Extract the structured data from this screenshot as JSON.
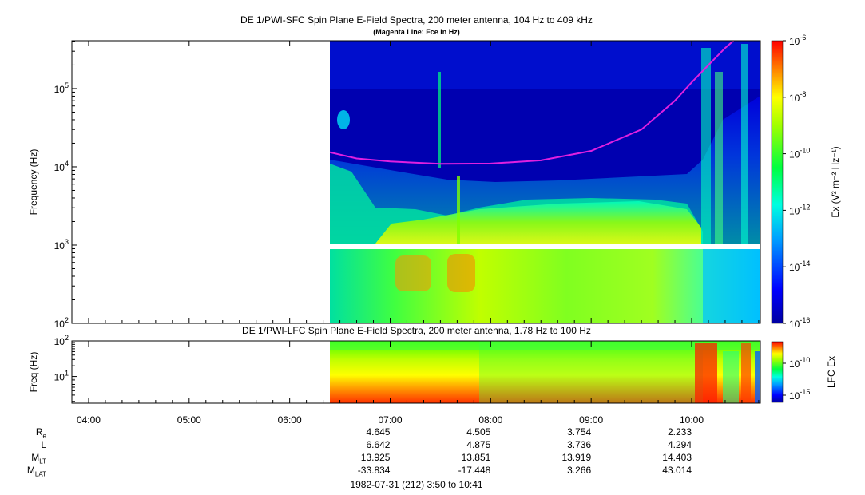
{
  "colors": {
    "bg_spectro": "#0000b0",
    "fce_line": "#e020e0",
    "gap": "#ffffff"
  },
  "chart_data": [
    {
      "type": "heatmap",
      "name": "sfc",
      "title": "DE 1/PWI-SFC  Spin Plane E-Field Spectra, 200 meter antenna, 104 Hz to 409 kHz",
      "subtitle": "(Magenta Line: Fce in Hz)",
      "ylabel": "Frequency (Hz)",
      "yscale": "log",
      "ylim": [
        100,
        409000
      ],
      "yticks": [
        {
          "value": 100,
          "base": "10",
          "exp": "2"
        },
        {
          "value": 1000,
          "base": "10",
          "exp": "3"
        },
        {
          "value": 10000,
          "base": "10",
          "exp": "4"
        },
        {
          "value": 100000,
          "base": "10",
          "exp": "5"
        }
      ],
      "xlim": [
        "03:50",
        "10:41"
      ],
      "data_start": "06:23",
      "colorbar": {
        "label": "Ex (V² m⁻² Hz⁻¹)",
        "scale": "log",
        "range": [
          1e-16,
          1e-06
        ],
        "ticks": [
          {
            "base": "10",
            "exp": "-6"
          },
          {
            "base": "10",
            "exp": "-8"
          },
          {
            "base": "10",
            "exp": "-10"
          },
          {
            "base": "10",
            "exp": "-12"
          },
          {
            "base": "10",
            "exp": "-14"
          },
          {
            "base": "10",
            "exp": "-16"
          }
        ]
      },
      "series": [
        {
          "name": "Fce",
          "x": [
            "06:23",
            "06:40",
            "07:00",
            "07:30",
            "08:00",
            "08:30",
            "09:00",
            "09:30",
            "09:50",
            "10:00",
            "10:10",
            "10:20",
            "10:25"
          ],
          "y": [
            15500,
            12800,
            11700,
            10900,
            11000,
            12100,
            16000,
            30000,
            70000,
            120000,
            200000,
            330000,
            409000
          ]
        }
      ]
    },
    {
      "type": "heatmap",
      "name": "lfc",
      "title": "DE 1/PWI-LFC  Spin Plane E-Field Spectra, 200 meter antenna, 1.78 Hz to 100 Hz",
      "ylabel": "Freq (Hz)",
      "yscale": "log",
      "ylim": [
        1.78,
        100
      ],
      "yticks": [
        {
          "value": 10,
          "base": "10",
          "exp": "1"
        },
        {
          "value": 100,
          "base": "10",
          "exp": "2"
        }
      ],
      "xlim": [
        "03:50",
        "10:41"
      ],
      "data_start": "06:23",
      "colorbar": {
        "label": "LFC Ex",
        "scale": "log",
        "ticks": [
          {
            "base": "10",
            "exp": "-10"
          },
          {
            "base": "10",
            "exp": "-15"
          }
        ]
      }
    }
  ],
  "x_axis": {
    "ticks": [
      "04:00",
      "05:00",
      "06:00",
      "07:00",
      "08:00",
      "09:00",
      "10:00"
    ]
  },
  "ephemeris": {
    "rows": [
      {
        "label": "R",
        "sub": "e",
        "values": [
          "4.645",
          "4.505",
          "3.754",
          "2.233"
        ]
      },
      {
        "label": "L",
        "sub": "",
        "values": [
          "6.642",
          "4.875",
          "3.736",
          "4.294"
        ]
      },
      {
        "label": "M",
        "sub": "LT",
        "values": [
          "13.925",
          "13.851",
          "13.919",
          "14.403"
        ]
      },
      {
        "label": "M",
        "sub": "LAT",
        "values": [
          "-33.834",
          "-17.448",
          "3.266",
          "43.014"
        ]
      }
    ]
  },
  "footer": "1982-07-31 (212) 3:50 to 10:41"
}
